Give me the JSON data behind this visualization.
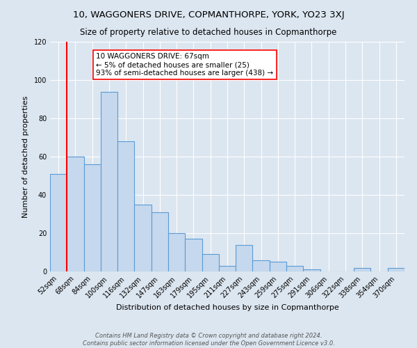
{
  "title": "10, WAGGONERS DRIVE, COPMANTHORPE, YORK, YO23 3XJ",
  "subtitle": "Size of property relative to detached houses in Copmanthorpe",
  "xlabel": "Distribution of detached houses by size in Copmanthorpe",
  "ylabel": "Number of detached properties",
  "footer_line1": "Contains HM Land Registry data © Crown copyright and database right 2024.",
  "footer_line2": "Contains public sector information licensed under the Open Government Licence v3.0.",
  "bar_labels": [
    "52sqm",
    "68sqm",
    "84sqm",
    "100sqm",
    "116sqm",
    "132sqm",
    "147sqm",
    "163sqm",
    "179sqm",
    "195sqm",
    "211sqm",
    "227sqm",
    "243sqm",
    "259sqm",
    "275sqm",
    "291sqm",
    "306sqm",
    "322sqm",
    "338sqm",
    "354sqm",
    "370sqm"
  ],
  "bar_values": [
    51,
    60,
    56,
    94,
    68,
    35,
    31,
    20,
    17,
    9,
    3,
    14,
    6,
    5,
    3,
    1,
    0,
    0,
    2,
    0,
    2
  ],
  "bar_color": "#c5d8ed",
  "bar_edge_color": "#5b9bd5",
  "background_color": "#dce6f0",
  "ylim": [
    0,
    120
  ],
  "yticks": [
    0,
    20,
    40,
    60,
    80,
    100,
    120
  ],
  "red_line_x": 0.5,
  "annotation_title": "10 WAGGONERS DRIVE: 67sqm",
  "annotation_line2": "← 5% of detached houses are smaller (25)",
  "annotation_line3": "93% of semi-detached houses are larger (438) →",
  "title_fontsize": 9.5,
  "subtitle_fontsize": 8.5,
  "axis_label_fontsize": 8,
  "tick_fontsize": 7,
  "annotation_fontsize": 7.5,
  "footer_fontsize": 6
}
